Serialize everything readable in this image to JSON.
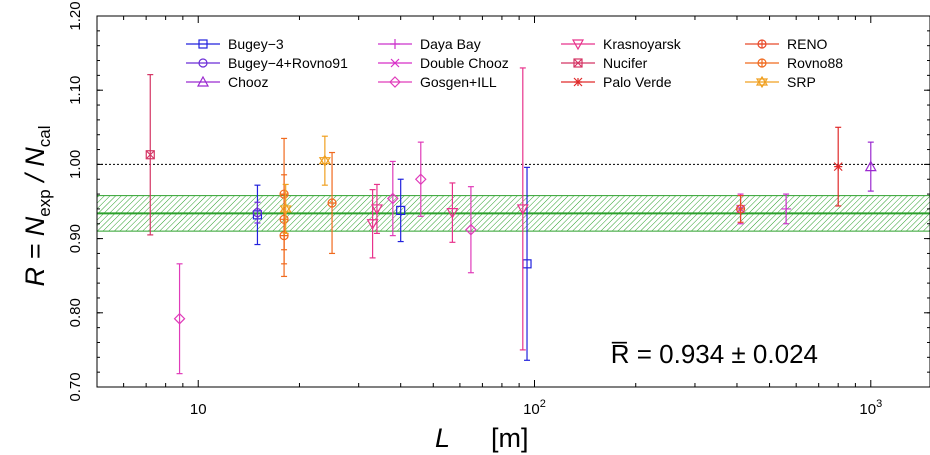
{
  "chart_data": {
    "type": "scatter",
    "title": "",
    "xlabel": {
      "main": "L",
      "unit": "[m]"
    },
    "ylabel": {
      "main": "R = N",
      "sub1": "exp",
      "slash": " / N",
      "sub2": "cal"
    },
    "x_scale": "log",
    "xlim": [
      5,
      1500
    ],
    "ylim": [
      0.7,
      1.2
    ],
    "x_ticks": [
      {
        "value": 10,
        "base": "10",
        "exp": ""
      },
      {
        "value": 100,
        "base": "10",
        "exp": "2"
      },
      {
        "value": 1000,
        "base": "10",
        "exp": "3"
      }
    ],
    "y_ticks": [
      {
        "value": 0.7,
        "label": "0.70"
      },
      {
        "value": 0.8,
        "label": "0.80"
      },
      {
        "value": 0.9,
        "label": "0.90"
      },
      {
        "value": 1.0,
        "label": "1.00"
      },
      {
        "value": 1.1,
        "label": "1.10"
      },
      {
        "value": 1.2,
        "label": "1.20"
      }
    ],
    "reference_line": {
      "y": 1.0,
      "style": "dotted",
      "color": "#000000"
    },
    "average": {
      "value": 0.934,
      "error": 0.024,
      "color": "#2ca02c",
      "label": "R̅ = 0.934 ± 0.024"
    },
    "legend": {
      "placement": "top",
      "columns": 4
    },
    "series": [
      {
        "name": "Bugey−3",
        "marker": "square",
        "color": "#2222dd",
        "points": [
          {
            "x": 15,
            "y": 0.932,
            "err": 0.04
          },
          {
            "x": 40,
            "y": 0.938,
            "err": 0.042
          },
          {
            "x": 95,
            "y": 0.866,
            "err": 0.13
          }
        ]
      },
      {
        "name": "Bugey−4+Rovno91",
        "marker": "circle",
        "color": "#6a2cd6",
        "points": [
          {
            "x": 15,
            "y": 0.935,
            "err": 0.014
          }
        ]
      },
      {
        "name": "Chooz",
        "marker": "triangle",
        "color": "#9b2ad0",
        "points": [
          {
            "x": 1000,
            "y": 0.997,
            "err": 0.033
          }
        ]
      },
      {
        "name": "Daya Bay",
        "marker": "plus",
        "color": "#cc33cc",
        "points": [
          {
            "x": 560,
            "y": 0.94,
            "err": 0.02
          }
        ]
      },
      {
        "name": "Double Chooz",
        "marker": "cross",
        "color": "#d82fc8",
        "points": [
          {
            "x": 410,
            "y": 0.94,
            "err": 0.02
          }
        ]
      },
      {
        "name": "Gosgen+ILL",
        "marker": "diamond",
        "color": "#e03cba",
        "points": [
          {
            "x": 8.8,
            "y": 0.792,
            "err": 0.074
          },
          {
            "x": 37.9,
            "y": 0.954,
            "err": 0.05
          },
          {
            "x": 45.9,
            "y": 0.98,
            "err": 0.05
          },
          {
            "x": 64.7,
            "y": 0.912,
            "err": 0.058
          }
        ]
      },
      {
        "name": "Krasnoyarsk",
        "marker": "inv-triangle",
        "color": "#e8338c",
        "points": [
          {
            "x": 33,
            "y": 0.92,
            "err": 0.046
          },
          {
            "x": 34,
            "y": 0.94,
            "err": 0.033
          },
          {
            "x": 57,
            "y": 0.935,
            "err": 0.04
          },
          {
            "x": 92.3,
            "y": 0.94,
            "err": 0.19
          }
        ]
      },
      {
        "name": "Nucifer",
        "marker": "square-x",
        "color": "#d43464",
        "points": [
          {
            "x": 7.2,
            "y": 1.013,
            "err": 0.108
          }
        ]
      },
      {
        "name": "Palo Verde",
        "marker": "asterisk",
        "color": "#e02a2a",
        "points": [
          {
            "x": 800,
            "y": 0.997,
            "err": 0.053
          }
        ]
      },
      {
        "name": "RENO",
        "marker": "circle-plus",
        "color": "#e84a2a",
        "points": [
          {
            "x": 410,
            "y": 0.94,
            "err": 0.018
          }
        ]
      },
      {
        "name": "Rovno88",
        "marker": "circle-plus",
        "color": "#f06a1e",
        "points": [
          {
            "x": 18,
            "y": 0.96,
            "err": 0.075
          },
          {
            "x": 18,
            "y": 0.904,
            "err": 0.055
          },
          {
            "x": 18,
            "y": 0.926,
            "err": 0.06
          },
          {
            "x": 25,
            "y": 0.948,
            "err": 0.068
          }
        ]
      },
      {
        "name": "SRP",
        "marker": "star",
        "color": "#f0a020",
        "points": [
          {
            "x": 18.2,
            "y": 0.94,
            "err": 0.033
          },
          {
            "x": 23.8,
            "y": 1.005,
            "err": 0.033
          }
        ]
      }
    ]
  }
}
